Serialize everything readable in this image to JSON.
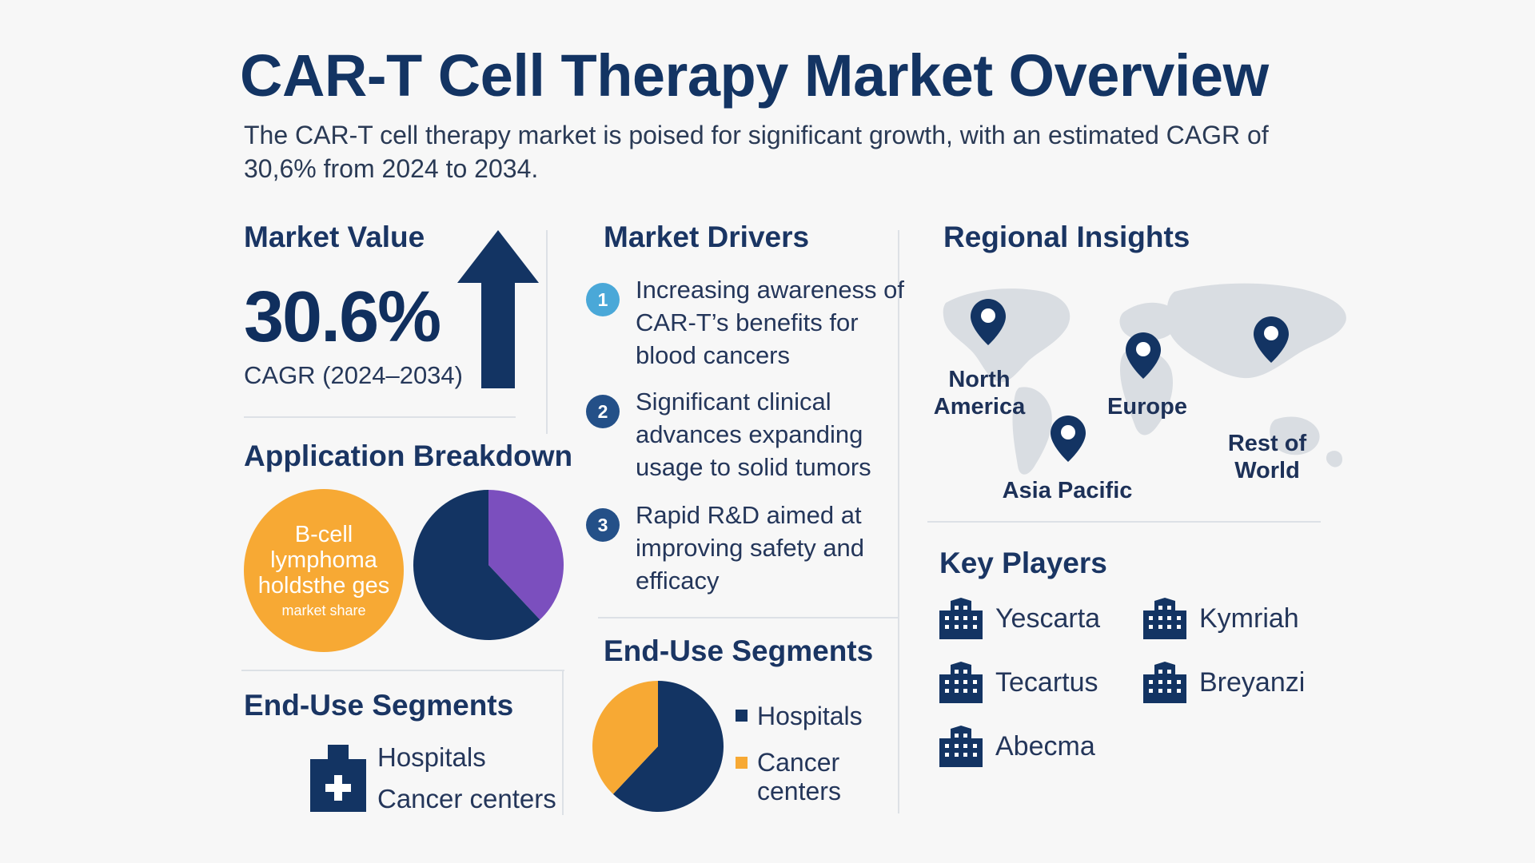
{
  "header": {
    "title": "CAR-T Cell Therapy Market Overview",
    "subtitle": "The CAR-T cell therapy market is poised for significant growth, with an estimated CAGR of 30,6% from 2024 to 2034."
  },
  "market_value": {
    "heading": "Market Value",
    "value": "30.6%",
    "caption": "CAGR (2024–2034)",
    "icon": "up-arrow-icon"
  },
  "application": {
    "heading": "Application Breakdown",
    "highlight_main": "B-cell lymphoma holdsthe ges",
    "highlight_sub": "market share",
    "pie": [
      {
        "share": 0.62,
        "color": "#133463"
      },
      {
        "share": 0.38,
        "color": "#7b4fbe"
      }
    ]
  },
  "end_use_left": {
    "heading": "End-Use Segments",
    "icon": "hospital-cross-icon",
    "items": [
      "Hospitals",
      "Cancer centers"
    ]
  },
  "drivers": {
    "heading": "Market Drivers",
    "items": [
      {
        "num": "1",
        "text": "Increasing awareness of CAR-T’s benefits for blood cancers",
        "color": "#4aa8d8"
      },
      {
        "num": "2",
        "text": "Significant clinical advances expanding usage to solid tumors",
        "color": "#245088"
      },
      {
        "num": "3",
        "text": "Rapid R&D aimed at improving safety and efficacy",
        "color": "#245088"
      }
    ]
  },
  "end_use_mid": {
    "heading": "End-Use Segments",
    "legend": [
      {
        "label": "Hospitals",
        "color": "#133463"
      },
      {
        "label": "Cancer centers",
        "color": "#f7a934"
      }
    ],
    "pie": [
      {
        "label": "Hospitals",
        "share": 0.62,
        "color": "#133463"
      },
      {
        "label": "Cancer centers",
        "share": 0.38,
        "color": "#f7a934"
      }
    ]
  },
  "regional": {
    "heading": "Regional Insights",
    "regions": [
      "North America",
      "Europe",
      "Asia Pacific",
      "Rest of World"
    ]
  },
  "players": {
    "heading": "Key Players",
    "items": [
      "Yescarta",
      "Kymriah",
      "Tecartus",
      "Breyanzi",
      "Abecma"
    ],
    "icon": "building-icon"
  }
}
